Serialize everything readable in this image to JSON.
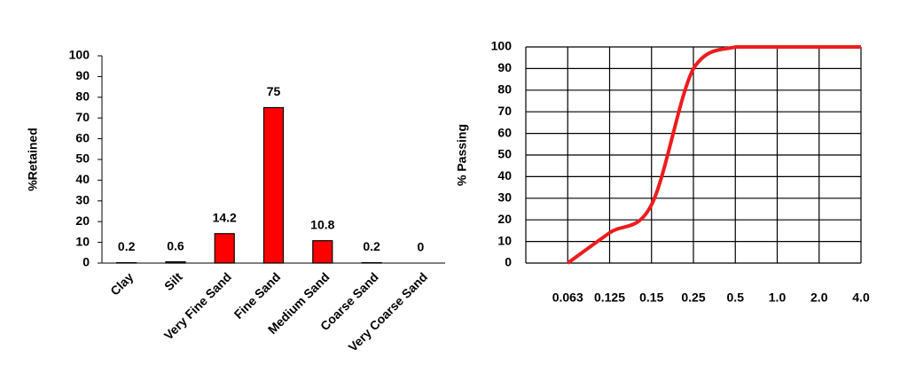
{
  "chart_data": [
    {
      "type": "bar",
      "y_label": "%Retained",
      "categories": [
        "Clay",
        "Silt",
        "Very Fine Sand",
        "Fine Sand",
        "Medium Sand",
        "Coarse Sand",
        "Very Coarse Sand"
      ],
      "values": [
        0.2,
        0.6,
        14.2,
        75,
        10.8,
        0.2,
        0
      ],
      "color": "#ff0000",
      "ylim": [
        0,
        100
      ],
      "yticks": [
        0,
        10,
        20,
        30,
        40,
        50,
        60,
        70,
        80,
        90,
        100
      ]
    },
    {
      "type": "line",
      "y_label": "% Passing",
      "categories": [
        null,
        "0.063",
        "0.125",
        "0.15",
        "0.25",
        "0.5",
        "1.0",
        "2.0",
        "4.0"
      ],
      "values": [
        null,
        0,
        14,
        27,
        90,
        100,
        100,
        100,
        100
      ],
      "color": "#ee1c1c",
      "ylim": [
        0,
        100
      ],
      "yticks": [
        0,
        10,
        20,
        30,
        40,
        50,
        60,
        70,
        80,
        90,
        100
      ],
      "grid": true
    }
  ]
}
